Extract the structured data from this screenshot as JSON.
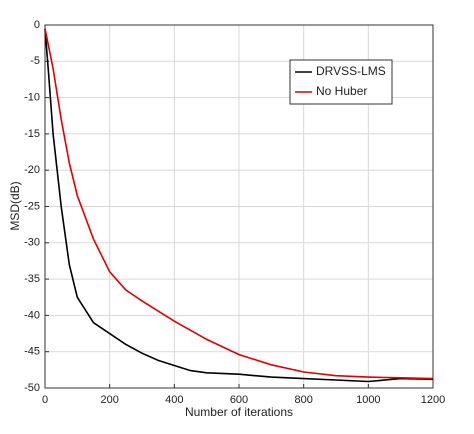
{
  "chart_data": {
    "type": "line",
    "xlabel": "Number of iterations",
    "ylabel": "MSD(dB)",
    "xlim": [
      0,
      1200
    ],
    "xticks": [
      0,
      200,
      400,
      600,
      800,
      1000,
      1200
    ],
    "ylim": [
      -50,
      0
    ],
    "yticks": [
      0,
      -5,
      -10,
      -15,
      -20,
      -25,
      -30,
      -35,
      -40,
      -45,
      -50
    ],
    "grid": true,
    "legend": "upper right",
    "series": [
      {
        "name": "DRVSS-LMS",
        "color": "#000000",
        "x": [
          0,
          10,
          25,
          50,
          75,
          100,
          150,
          200,
          250,
          300,
          350,
          400,
          450,
          500,
          600,
          700,
          800,
          900,
          1000,
          1100,
          1200
        ],
        "values": [
          -0.5,
          -6,
          -15,
          -25,
          -33,
          -37.5,
          -41,
          -42.5,
          -44,
          -45.2,
          -46.2,
          -46.9,
          -47.6,
          -47.9,
          -48.1,
          -48.5,
          -48.7,
          -48.9,
          -49.1,
          -48.7,
          -48.8
        ]
      },
      {
        "name": "No Huber",
        "color": "#e00000",
        "x": [
          0,
          25,
          50,
          75,
          100,
          150,
          200,
          250,
          300,
          400,
          500,
          600,
          700,
          800,
          900,
          1000,
          1100,
          1200
        ],
        "values": [
          -0.5,
          -6,
          -13,
          -19,
          -23.5,
          -29.5,
          -34,
          -36.5,
          -38,
          -40.8,
          -43.3,
          -45.4,
          -46.8,
          -47.8,
          -48.3,
          -48.5,
          -48.6,
          -48.7
        ]
      }
    ]
  }
}
